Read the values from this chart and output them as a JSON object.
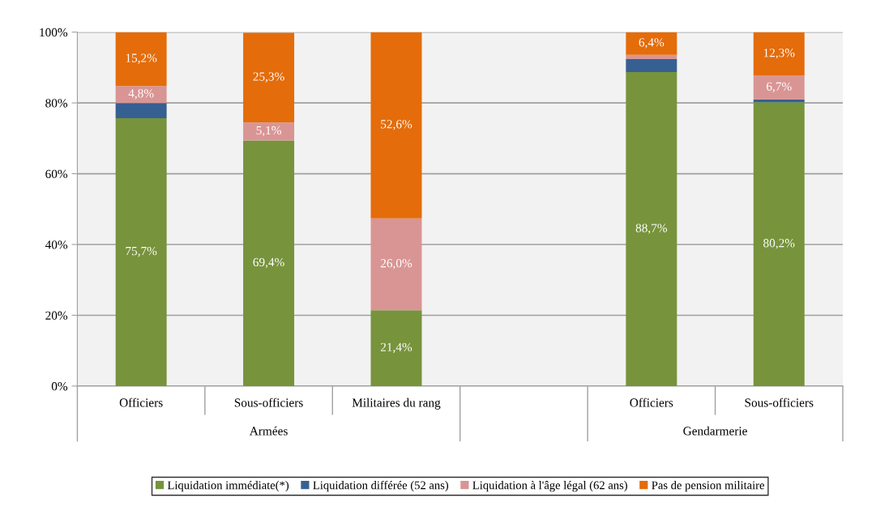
{
  "chart_data": {
    "type": "bar",
    "stacked": true,
    "categories": [
      "Officiers",
      "Sous-officiers",
      "Militaires du rang",
      null,
      "Officiers",
      "Sous-officiers"
    ],
    "series": [
      {
        "name": "Liquidation immédiate(*)",
        "color": "#77933c",
        "values": [
          75.7,
          69.4,
          21.4,
          null,
          88.7,
          80.2
        ],
        "value_labels": [
          "75,7%",
          "69,4%",
          "21,4%",
          null,
          "88,7%",
          "80,2%"
        ]
      },
      {
        "name": "Liquidation différée (52 ans)",
        "color": "#366092",
        "values": [
          4.3,
          null,
          0,
          null,
          3.7,
          0.8
        ],
        "value_labels": [
          null,
          null,
          null,
          null,
          null,
          null
        ]
      },
      {
        "name": "Liquidation à l'âge légal (62 ans)",
        "color": "#d99594",
        "values": [
          4.8,
          5.1,
          26.0,
          null,
          1.2,
          6.7
        ],
        "value_labels": [
          "4,8%",
          "5,1%",
          "26,0%",
          null,
          null,
          "6,7%"
        ]
      },
      {
        "name": "Pas de pension militaire",
        "color": "#e46c0a",
        "values": [
          15.2,
          25.3,
          52.6,
          null,
          6.4,
          12.3
        ],
        "value_labels": [
          "15,2%",
          "25,3%",
          "52,6%",
          null,
          "6,4%",
          "12,3%"
        ]
      }
    ],
    "annotations": [
      "Armées",
      "Gendarmerie"
    ],
    "ylim": [
      0,
      100
    ],
    "yticks": [
      {
        "value": 0,
        "label": "0%"
      },
      {
        "value": 20,
        "label": "20%"
      },
      {
        "value": 40,
        "label": "40%"
      },
      {
        "value": 60,
        "label": "60%"
      },
      {
        "value": 80,
        "label": "80%"
      },
      {
        "value": 100,
        "label": "100%"
      }
    ],
    "grid": "y",
    "legend": "bottom"
  }
}
